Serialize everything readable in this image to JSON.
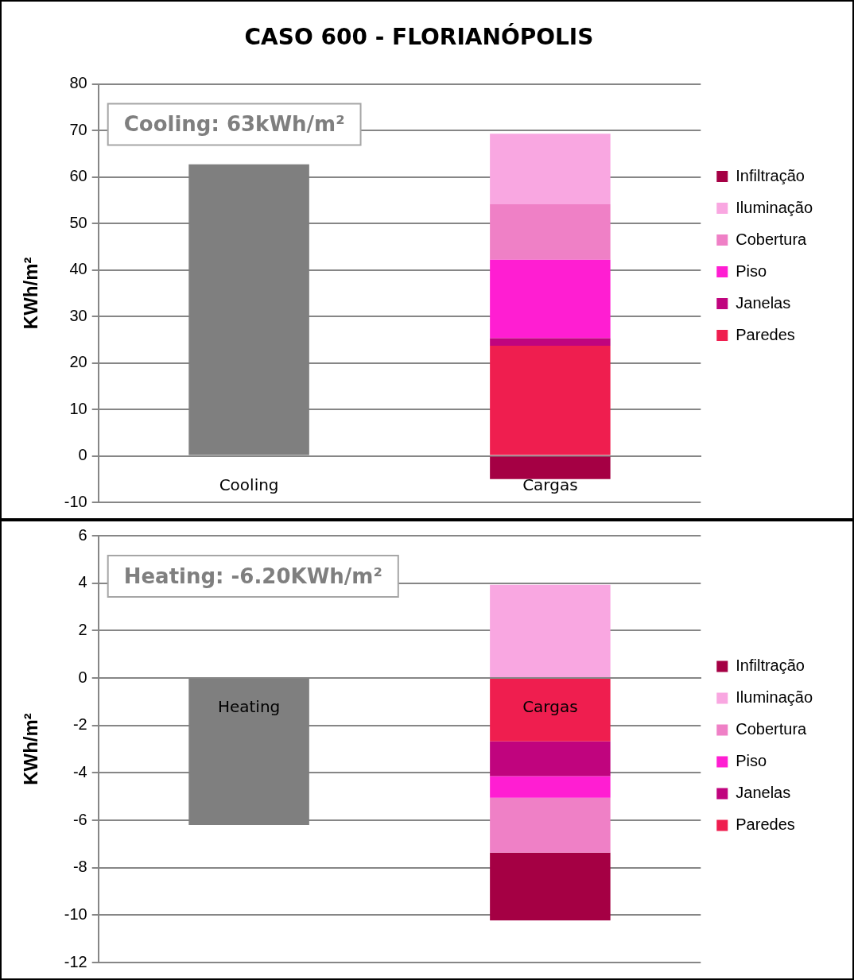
{
  "chart_data": [
    {
      "type": "bar",
      "title": "CASO 600 - FLORIANÓPOLIS",
      "ylabel": "KWh/m²",
      "categories": [
        "Cooling",
        "Cargas"
      ],
      "stacked": true,
      "series": [
        {
          "name": "Paredes",
          "color": "#ef1e4f",
          "values": [
            null,
            23.7
          ]
        },
        {
          "name": "Janelas",
          "color": "#c0047e",
          "values": [
            null,
            1.6
          ]
        },
        {
          "name": "Piso",
          "color": "#ff1ed2",
          "values": [
            null,
            16.9
          ]
        },
        {
          "name": "Cobertura",
          "color": "#ef80c6",
          "values": [
            null,
            11.9
          ]
        },
        {
          "name": "Iluminação",
          "color": "#f9a7e1",
          "values": [
            null,
            15.2
          ]
        },
        {
          "name": "Infiltração",
          "color": "#a50044",
          "values": [
            null,
            -5.0
          ]
        },
        {
          "color": "#7f7f7f",
          "values": [
            62.7,
            null
          ]
        }
      ],
      "ylim": [
        -10,
        80
      ],
      "yticks": [
        -10,
        0,
        10,
        20,
        30,
        40,
        50,
        60,
        70,
        80
      ],
      "grid": "y",
      "legend": "right",
      "annotations": [
        "Cooling: 63kWh/m²"
      ]
    },
    {
      "type": "bar",
      "ylabel": "KWh/m²",
      "categories": [
        "Heating",
        "Cargas"
      ],
      "stacked": true,
      "series": [
        {
          "name": "Paredes",
          "color": "#ef1e4f",
          "values": [
            null,
            -2.67
          ]
        },
        {
          "name": "Janelas",
          "color": "#c0047e",
          "values": [
            null,
            -1.47
          ]
        },
        {
          "name": "Piso",
          "color": "#ff1ed2",
          "values": [
            null,
            -0.91
          ]
        },
        {
          "name": "Cobertura",
          "color": "#ef80c6",
          "values": [
            null,
            -2.32
          ]
        },
        {
          "name": "Iluminação",
          "color": "#f9a7e1",
          "values": [
            null,
            3.93
          ]
        },
        {
          "name": "Infiltração",
          "color": "#a50044",
          "values": [
            null,
            -2.85
          ]
        },
        {
          "color": "#7f7f7f",
          "values": [
            -6.2,
            null
          ]
        }
      ],
      "ylim": [
        -12,
        6
      ],
      "yticks": [
        -12,
        -10,
        -8,
        -6,
        -4,
        -2,
        0,
        2,
        4,
        6
      ],
      "grid": "y",
      "legend": "right",
      "annotations": [
        "Heating: -6.20KWh/m²"
      ]
    }
  ]
}
